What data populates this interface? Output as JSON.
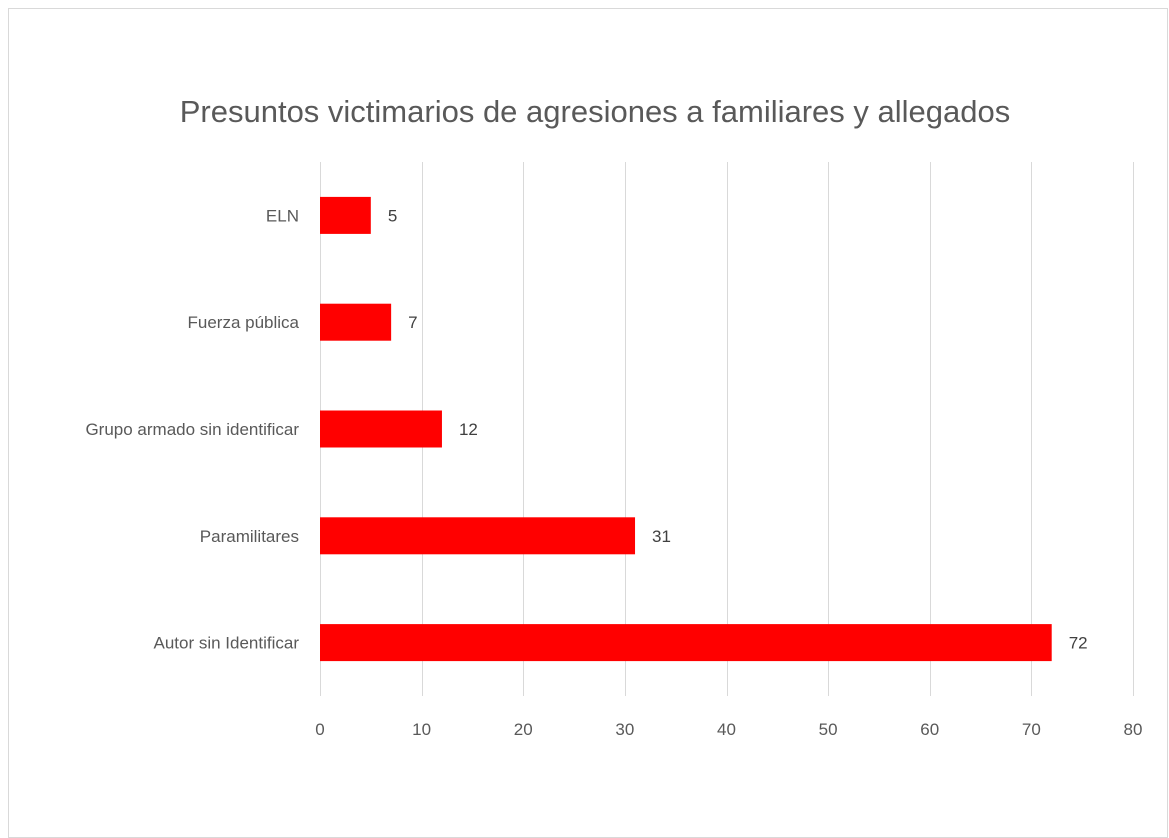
{
  "chart_data": {
    "type": "bar",
    "orientation": "horizontal",
    "title": "Presuntos victimarios de agresiones a familiares y allegados",
    "categories": [
      "ELN",
      "Fuerza pública",
      "Grupo armado sin identificar",
      "Paramilitares",
      "Autor sin Identificar"
    ],
    "values": [
      5,
      7,
      12,
      31,
      72
    ],
    "xlim": [
      0,
      80
    ],
    "xticks": [
      0,
      10,
      20,
      30,
      40,
      50,
      60,
      70,
      80
    ],
    "xlabel": "",
    "ylabel": "",
    "grid": "vertical",
    "legend": "none",
    "data_labels": true,
    "colors": {
      "bar": "#ff0000",
      "grid": "#d9d9d9",
      "text": "#595959"
    }
  }
}
